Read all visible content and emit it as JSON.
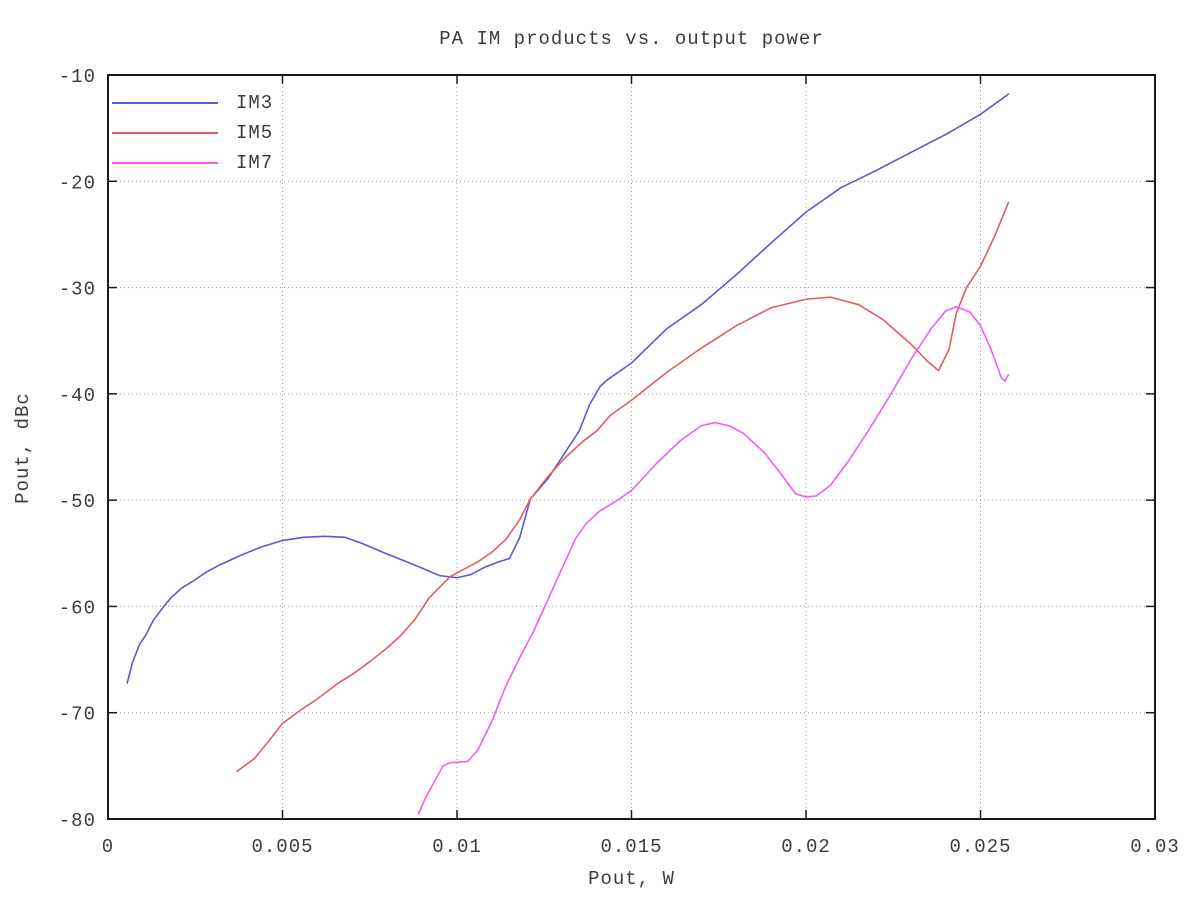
{
  "chart_data": {
    "type": "line",
    "title": "PA IM products vs. output power",
    "xlabel": "Pout, W",
    "ylabel": "Pout, dBc",
    "xlim": [
      0,
      0.03
    ],
    "ylim": [
      -80,
      -10
    ],
    "xticks": [
      0,
      0.005,
      0.01,
      0.015,
      0.02,
      0.025,
      0.03
    ],
    "xtick_labels": [
      "0",
      "0.005",
      "0.01",
      "0.015",
      "0.02",
      "0.025",
      "0.03"
    ],
    "yticks": [
      -80,
      -70,
      -60,
      -50,
      -40,
      -30,
      -20,
      -10
    ],
    "ytick_labels": [
      "-80",
      "-70",
      "-60",
      "-50",
      "-40",
      "-30",
      "-20",
      "-10"
    ],
    "grid": "dotted",
    "legend_position": "top-left-inside",
    "series": [
      {
        "name": "IM3",
        "color": "#5a5ad8",
        "points": [
          [
            0.00055,
            -67.2
          ],
          [
            0.0007,
            -65.3
          ],
          [
            0.0009,
            -63.6
          ],
          [
            0.0011,
            -62.6
          ],
          [
            0.0013,
            -61.3
          ],
          [
            0.0016,
            -60.0
          ],
          [
            0.0018,
            -59.2
          ],
          [
            0.0021,
            -58.3
          ],
          [
            0.0024,
            -57.7
          ],
          [
            0.0028,
            -56.8
          ],
          [
            0.0032,
            -56.1
          ],
          [
            0.0038,
            -55.2
          ],
          [
            0.0044,
            -54.4
          ],
          [
            0.005,
            -53.8
          ],
          [
            0.0056,
            -53.5
          ],
          [
            0.0062,
            -53.4
          ],
          [
            0.0068,
            -53.5
          ],
          [
            0.0073,
            -54.1
          ],
          [
            0.0078,
            -54.8
          ],
          [
            0.0084,
            -55.6
          ],
          [
            0.009,
            -56.4
          ],
          [
            0.0095,
            -57.1
          ],
          [
            0.01,
            -57.3
          ],
          [
            0.0104,
            -57.0
          ],
          [
            0.0108,
            -56.3
          ],
          [
            0.0112,
            -55.8
          ],
          [
            0.0115,
            -55.5
          ],
          [
            0.0118,
            -53.5
          ],
          [
            0.0121,
            -49.9
          ],
          [
            0.0126,
            -48.0
          ],
          [
            0.0131,
            -45.5
          ],
          [
            0.0135,
            -43.5
          ],
          [
            0.0138,
            -41.0
          ],
          [
            0.0141,
            -39.3
          ],
          [
            0.0143,
            -38.7
          ],
          [
            0.015,
            -37.1
          ],
          [
            0.016,
            -33.9
          ],
          [
            0.017,
            -31.6
          ],
          [
            0.018,
            -28.8
          ],
          [
            0.019,
            -25.8
          ],
          [
            0.02,
            -22.9
          ],
          [
            0.021,
            -20.6
          ],
          [
            0.022,
            -19.0
          ],
          [
            0.023,
            -17.3
          ],
          [
            0.024,
            -15.6
          ],
          [
            0.025,
            -13.7
          ],
          [
            0.0258,
            -11.8
          ]
        ]
      },
      {
        "name": "IM5",
        "color": "#e05f5f",
        "points": [
          [
            0.0037,
            -75.5
          ],
          [
            0.0042,
            -74.3
          ],
          [
            0.0046,
            -72.7
          ],
          [
            0.005,
            -71.0
          ],
          [
            0.0055,
            -69.8
          ],
          [
            0.006,
            -68.7
          ],
          [
            0.0066,
            -67.2
          ],
          [
            0.007,
            -66.4
          ],
          [
            0.0075,
            -65.2
          ],
          [
            0.008,
            -63.9
          ],
          [
            0.0084,
            -62.7
          ],
          [
            0.0088,
            -61.2
          ],
          [
            0.0092,
            -59.2
          ],
          [
            0.0095,
            -58.2
          ],
          [
            0.0098,
            -57.2
          ],
          [
            0.0102,
            -56.5
          ],
          [
            0.0106,
            -55.8
          ],
          [
            0.011,
            -54.9
          ],
          [
            0.0114,
            -53.7
          ],
          [
            0.0118,
            -51.8
          ],
          [
            0.0121,
            -49.9
          ],
          [
            0.0126,
            -47.8
          ],
          [
            0.0131,
            -46.0
          ],
          [
            0.0136,
            -44.5
          ],
          [
            0.014,
            -43.5
          ],
          [
            0.0144,
            -42.0
          ],
          [
            0.015,
            -40.6
          ],
          [
            0.016,
            -38.0
          ],
          [
            0.017,
            -35.7
          ],
          [
            0.018,
            -33.6
          ],
          [
            0.019,
            -31.9
          ],
          [
            0.02,
            -31.1
          ],
          [
            0.0207,
            -30.9
          ],
          [
            0.0215,
            -31.6
          ],
          [
            0.0222,
            -33.0
          ],
          [
            0.023,
            -35.3
          ],
          [
            0.0235,
            -37.0
          ],
          [
            0.0238,
            -37.8
          ],
          [
            0.0241,
            -35.8
          ],
          [
            0.0243,
            -32.5
          ],
          [
            0.0246,
            -30.0
          ],
          [
            0.025,
            -28.0
          ],
          [
            0.0254,
            -25.2
          ],
          [
            0.0258,
            -22.0
          ]
        ]
      },
      {
        "name": "IM7",
        "color": "#f55cf5",
        "points": [
          [
            0.0089,
            -79.5
          ],
          [
            0.0091,
            -78.0
          ],
          [
            0.0094,
            -76.2
          ],
          [
            0.0096,
            -75.0
          ],
          [
            0.0098,
            -74.7
          ],
          [
            0.0103,
            -74.6
          ],
          [
            0.0106,
            -73.5
          ],
          [
            0.011,
            -70.8
          ],
          [
            0.0114,
            -67.5
          ],
          [
            0.0118,
            -64.8
          ],
          [
            0.0122,
            -62.3
          ],
          [
            0.0126,
            -59.4
          ],
          [
            0.013,
            -56.5
          ],
          [
            0.0134,
            -53.6
          ],
          [
            0.0137,
            -52.2
          ],
          [
            0.0141,
            -51.0
          ],
          [
            0.0146,
            -50.0
          ],
          [
            0.015,
            -49.1
          ],
          [
            0.0157,
            -46.6
          ],
          [
            0.0164,
            -44.4
          ],
          [
            0.017,
            -43.0
          ],
          [
            0.0174,
            -42.7
          ],
          [
            0.0178,
            -43.0
          ],
          [
            0.0182,
            -43.7
          ],
          [
            0.0188,
            -45.5
          ],
          [
            0.0193,
            -47.6
          ],
          [
            0.0197,
            -49.4
          ],
          [
            0.02,
            -49.7
          ],
          [
            0.0203,
            -49.6
          ],
          [
            0.0207,
            -48.6
          ],
          [
            0.0212,
            -46.4
          ],
          [
            0.0218,
            -43.4
          ],
          [
            0.0224,
            -40.2
          ],
          [
            0.023,
            -36.8
          ],
          [
            0.0236,
            -33.8
          ],
          [
            0.024,
            -32.2
          ],
          [
            0.0243,
            -31.8
          ],
          [
            0.0247,
            -32.3
          ],
          [
            0.025,
            -33.6
          ],
          [
            0.0253,
            -35.8
          ],
          [
            0.0256,
            -38.5
          ],
          [
            0.0257,
            -38.8
          ],
          [
            0.0258,
            -38.2
          ]
        ]
      }
    ]
  },
  "style": {
    "border_color": "#1a1a1a",
    "grid_color": "#9a9a9a",
    "tick_color": "#1a1a1a",
    "text_color": "#3c3c3c"
  }
}
